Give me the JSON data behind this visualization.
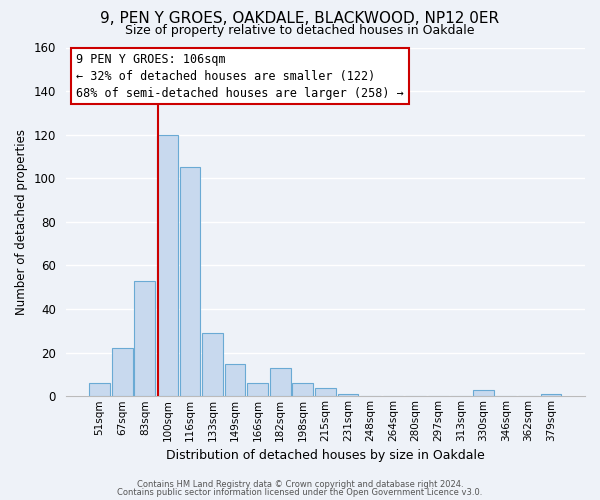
{
  "title1": "9, PEN Y GROES, OAKDALE, BLACKWOOD, NP12 0ER",
  "title2": "Size of property relative to detached houses in Oakdale",
  "xlabel": "Distribution of detached houses by size in Oakdale",
  "ylabel": "Number of detached properties",
  "bar_labels": [
    "51sqm",
    "67sqm",
    "83sqm",
    "100sqm",
    "116sqm",
    "133sqm",
    "149sqm",
    "166sqm",
    "182sqm",
    "198sqm",
    "215sqm",
    "231sqm",
    "248sqm",
    "264sqm",
    "280sqm",
    "297sqm",
    "313sqm",
    "330sqm",
    "346sqm",
    "362sqm",
    "379sqm"
  ],
  "bar_heights": [
    6,
    22,
    53,
    120,
    105,
    29,
    15,
    6,
    13,
    6,
    4,
    1,
    0,
    0,
    0,
    0,
    0,
    3,
    0,
    0,
    1
  ],
  "bar_color": "#c8d9ee",
  "bar_edge_color": "#6aaad4",
  "ylim": [
    0,
    160
  ],
  "yticks": [
    0,
    20,
    40,
    60,
    80,
    100,
    120,
    140,
    160
  ],
  "property_line_index": 3,
  "property_line_color": "#cc0000",
  "annotation_title": "9 PEN Y GROES: 106sqm",
  "annotation_line1": "← 32% of detached houses are smaller (122)",
  "annotation_line2": "68% of semi-detached houses are larger (258) →",
  "annotation_box_color": "#ffffff",
  "annotation_box_edge": "#cc0000",
  "footer1": "Contains HM Land Registry data © Crown copyright and database right 2024.",
  "footer2": "Contains public sector information licensed under the Open Government Licence v3.0.",
  "background_color": "#eef2f8",
  "grid_color": "#ffffff",
  "title1_fontsize": 11,
  "title2_fontsize": 9,
  "bar_width": 0.92
}
